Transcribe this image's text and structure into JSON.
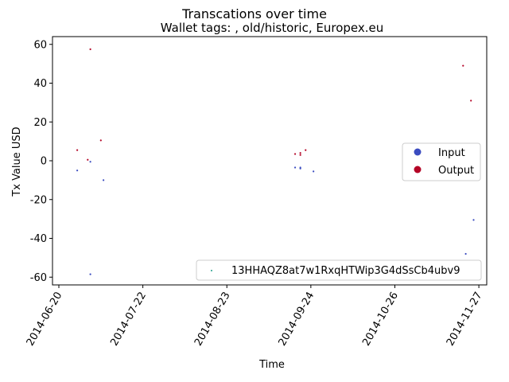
{
  "chart_data": {
    "type": "scatter",
    "title": "Transcations over time",
    "subtitle": "Wallet tags: , old/historic, Europex.eu",
    "xlabel": "Time",
    "ylabel": "Tx Value USD",
    "x_type": "date",
    "xlim": [
      "2014-06-20",
      "2014-11-30"
    ],
    "ylim": [
      -64,
      64
    ],
    "x_ticks": [
      "2014-06-20",
      "2014-07-22",
      "2014-08-23",
      "2014-09-24",
      "2014-10-26",
      "2014-11-27"
    ],
    "y_ticks": [
      -60,
      -40,
      -20,
      0,
      20,
      40,
      60
    ],
    "grid": false,
    "legends": [
      {
        "placement": "center-right",
        "entries": [
          {
            "label": "Input",
            "color": "#3b4cc0"
          },
          {
            "label": "Output",
            "color": "#b40426"
          }
        ]
      },
      {
        "placement": "lower-right",
        "entries": [
          {
            "label": "13HHAQZ8at7w1RxqHTWip3G4dSsCb4ubv9",
            "color": "#1f9e89"
          }
        ]
      }
    ],
    "series": [
      {
        "name": "Input",
        "color": "#3b4cc0",
        "points": [
          {
            "x": "2014-06-27",
            "y": -5
          },
          {
            "x": "2014-07-02",
            "y": -0.5
          },
          {
            "x": "2014-07-02",
            "y": -58.5
          },
          {
            "x": "2014-07-07",
            "y": -10
          },
          {
            "x": "2014-09-18",
            "y": -3.5
          },
          {
            "x": "2014-09-20",
            "y": -3.5
          },
          {
            "x": "2014-09-20",
            "y": -4
          },
          {
            "x": "2014-09-25",
            "y": -5.5
          },
          {
            "x": "2014-11-22",
            "y": -48
          },
          {
            "x": "2014-11-25",
            "y": -30.5
          }
        ]
      },
      {
        "name": "Output",
        "color": "#b40426",
        "points": [
          {
            "x": "2014-06-27",
            "y": 5.5
          },
          {
            "x": "2014-07-01",
            "y": 0.5
          },
          {
            "x": "2014-07-02",
            "y": 57.5
          },
          {
            "x": "2014-07-06",
            "y": 10.5
          },
          {
            "x": "2014-09-18",
            "y": 3.5
          },
          {
            "x": "2014-09-20",
            "y": 4
          },
          {
            "x": "2014-09-20",
            "y": 3
          },
          {
            "x": "2014-09-22",
            "y": 5.5
          },
          {
            "x": "2014-11-21",
            "y": 49
          },
          {
            "x": "2014-11-24",
            "y": 31
          }
        ]
      }
    ]
  }
}
